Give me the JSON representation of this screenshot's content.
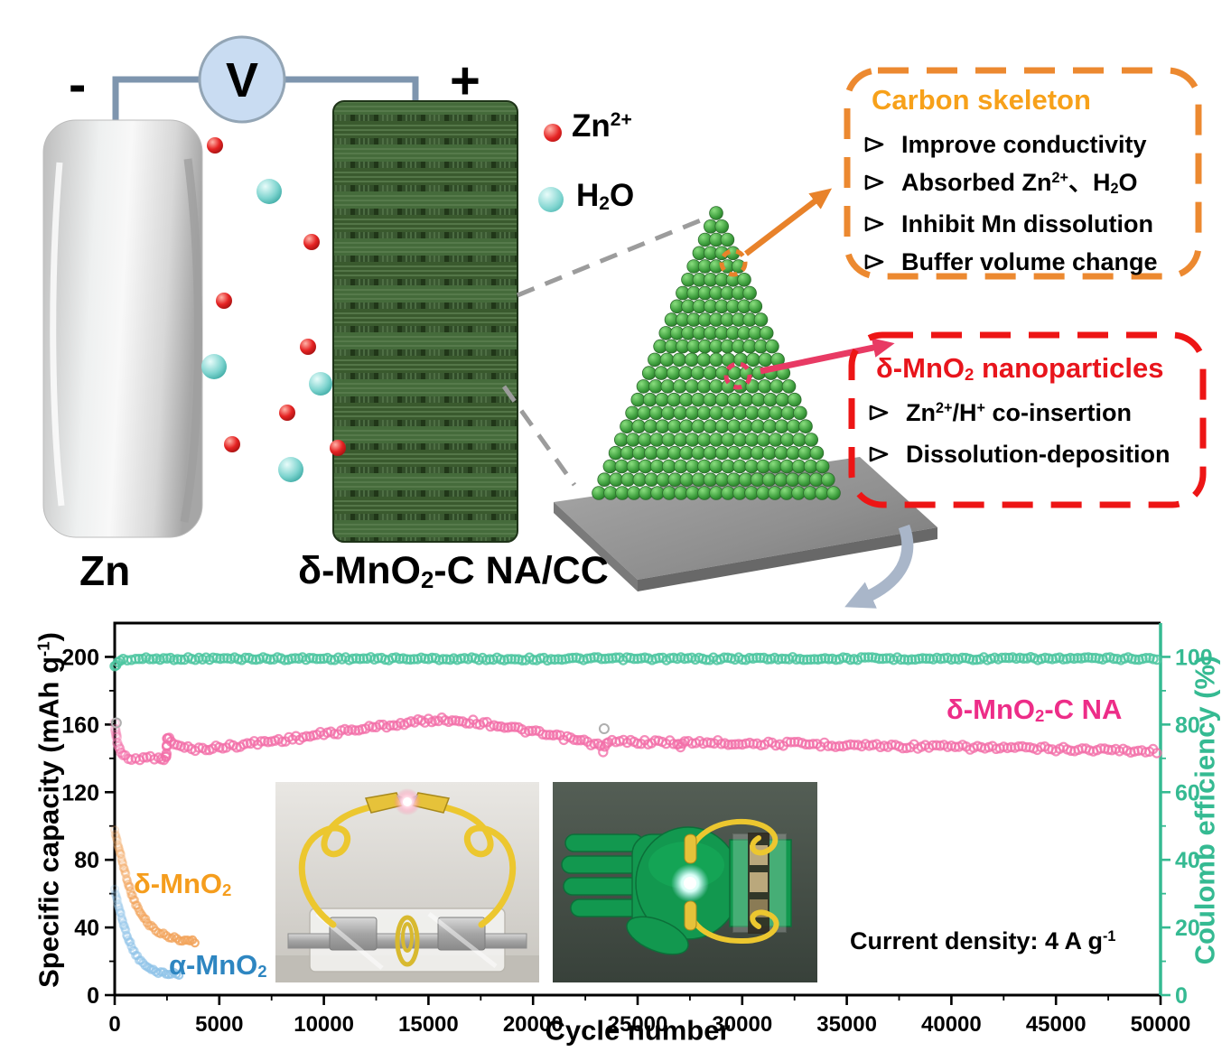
{
  "colors": {
    "pink_series": "#F36FA9",
    "pink_label": "#ED2D88",
    "green_series": "#4CC6A0",
    "green_axis": "#35BA92",
    "orange_series": "#F2A45C",
    "orange_label": "#F59D1D",
    "blue_series": "#8FC3E8",
    "blue_label": "#2E86C1",
    "carbon_border": "#EC8930",
    "carbon_title": "#F7A11A",
    "mno2_border": "#ED1515",
    "mno2_title": "#E8151C",
    "wire": "#7E95AE",
    "outlier": "#AFAFAF"
  },
  "diagram": {
    "minus": "-",
    "plus": "+",
    "voltmeter": "V",
    "anode_label": "Zn",
    "cathode_label": [
      [
        "t",
        "δ-MnO"
      ],
      [
        "sub",
        "2"
      ],
      [
        "t",
        "-C NA/CC"
      ]
    ],
    "legend": {
      "zn_ion": [
        [
          "t",
          "Zn"
        ],
        [
          "sup",
          "2+"
        ]
      ],
      "water": [
        [
          "t",
          "H"
        ],
        [
          "sub",
          "2"
        ],
        [
          "t",
          "O"
        ]
      ]
    },
    "carbon_box": {
      "title": "Carbon skeleton",
      "bullet": "➢",
      "items": [
        [
          [
            "t",
            "Improve conductivity"
          ]
        ],
        [
          [
            "t",
            "Absorbed Zn"
          ],
          [
            "sup",
            "2+"
          ],
          [
            "t",
            "、H"
          ],
          [
            "sub",
            "2"
          ],
          [
            "t",
            "O"
          ]
        ],
        [
          [
            "t",
            "Inhibit Mn dissolution"
          ]
        ],
        [
          [
            "t",
            "Buffer volume change"
          ]
        ]
      ]
    },
    "mno2_box": {
      "title": [
        [
          "t",
          "δ-MnO"
        ],
        [
          "sub",
          "2"
        ],
        [
          "t",
          " nanoparticles"
        ]
      ],
      "bullet": "➢",
      "items": [
        [
          [
            "t",
            "Zn"
          ],
          [
            "sup",
            "2+"
          ],
          [
            "t",
            "/H"
          ],
          [
            "sup",
            "+"
          ],
          [
            "t",
            " co-insertion"
          ]
        ],
        [
          [
            "t",
            "Dissolution-deposition"
          ]
        ]
      ]
    }
  },
  "chart_data": {
    "type": "scatter",
    "xlabel": "Cycle number",
    "ylabel_left": [
      [
        "t",
        "Specific capacity (mAh g"
      ],
      [
        "sup",
        "-1"
      ],
      [
        "t",
        ")"
      ]
    ],
    "ylabel_right": "Coulomb efficiency (%)",
    "annotation": [
      [
        "t",
        "Current density: 4 A g"
      ],
      [
        "sup",
        "-1"
      ]
    ],
    "xlim": [
      0,
      50000
    ],
    "ylim_left": [
      0,
      220
    ],
    "ylim_right": [
      0,
      110
    ],
    "x_ticks": [
      0,
      5000,
      10000,
      15000,
      20000,
      25000,
      30000,
      35000,
      40000,
      45000,
      50000
    ],
    "y_ticks_left": [
      0,
      40,
      80,
      120,
      160,
      200
    ],
    "y_ticks_right": [
      0,
      20,
      40,
      60,
      80,
      100
    ],
    "grid": false,
    "series": [
      {
        "id": "coulomb-efficiency",
        "label": [
          [
            "t",
            "Coulomb efficiency"
          ]
        ],
        "axis": "right",
        "color": "#4CC6A0",
        "points": [
          [
            0,
            97
          ],
          [
            150,
            98.5
          ],
          [
            400,
            99.2
          ],
          [
            1000,
            99.4
          ],
          [
            3000,
            99.5
          ],
          [
            10000,
            99.5
          ],
          [
            20000,
            99.4
          ],
          [
            30000,
            99.5
          ],
          [
            40000,
            99.5
          ],
          [
            50000,
            99.5
          ]
        ]
      },
      {
        "id": "delta-mno2-c-na",
        "label": [
          [
            "t",
            "δ-MnO"
          ],
          [
            "sub",
            "2"
          ],
          [
            "t",
            "-C NA"
          ]
        ],
        "axis": "left",
        "color": "#F36FA9",
        "points": [
          [
            0,
            160
          ],
          [
            120,
            150
          ],
          [
            300,
            143.5
          ],
          [
            500,
            140.5
          ],
          [
            800,
            139.5
          ],
          [
            1200,
            140
          ],
          [
            1700,
            140.5
          ],
          [
            2100,
            141
          ],
          [
            2350,
            140
          ],
          [
            2450,
            139.5
          ],
          [
            2520,
            153
          ],
          [
            2700,
            149.5
          ],
          [
            3000,
            147.5
          ],
          [
            3500,
            146
          ],
          [
            4200,
            145.5
          ],
          [
            5000,
            146.5
          ],
          [
            6000,
            148
          ],
          [
            7000,
            149.5
          ],
          [
            8000,
            151
          ],
          [
            9000,
            152.5
          ],
          [
            10000,
            154.5
          ],
          [
            11500,
            157
          ],
          [
            13000,
            159.5
          ],
          [
            14000,
            161
          ],
          [
            15000,
            162.5
          ],
          [
            15800,
            163
          ],
          [
            16800,
            162
          ],
          [
            17800,
            160.5
          ],
          [
            18800,
            158.5
          ],
          [
            19800,
            156
          ],
          [
            20800,
            153.5
          ],
          [
            21800,
            151.5
          ],
          [
            22600,
            149.5
          ],
          [
            23100,
            148
          ],
          [
            23350,
            145
          ],
          [
            23600,
            149.5
          ],
          [
            24500,
            150
          ],
          [
            26000,
            149.5
          ],
          [
            26900,
            149.5
          ],
          [
            27050,
            146.5
          ],
          [
            27250,
            149.5
          ],
          [
            28500,
            149.5
          ],
          [
            30000,
            149
          ],
          [
            32500,
            148.5
          ],
          [
            35000,
            148
          ],
          [
            37500,
            147.3
          ],
          [
            40000,
            146.7
          ],
          [
            42500,
            146.2
          ],
          [
            45000,
            145.6
          ],
          [
            47500,
            145
          ],
          [
            50000,
            144.3
          ]
        ]
      },
      {
        "id": "delta-mno2",
        "label": [
          [
            "t",
            "δ-MnO"
          ],
          [
            "sub",
            "2"
          ]
        ],
        "axis": "left",
        "color": "#F2A45C",
        "fade_in": true,
        "points": [
          [
            0,
            97
          ],
          [
            120,
            91
          ],
          [
            260,
            84
          ],
          [
            420,
            76
          ],
          [
            600,
            68
          ],
          [
            800,
            60
          ],
          [
            1000,
            54
          ],
          [
            1250,
            48
          ],
          [
            1550,
            43
          ],
          [
            1850,
            39.5
          ],
          [
            2200,
            36.5
          ],
          [
            2600,
            34.5
          ],
          [
            3100,
            33
          ],
          [
            3600,
            32
          ],
          [
            3950,
            31.5
          ]
        ]
      },
      {
        "id": "alpha-mno2",
        "label": [
          [
            "t",
            "α-MnO"
          ],
          [
            "sub",
            "2"
          ]
        ],
        "axis": "left",
        "color": "#8FC3E8",
        "fade_in": true,
        "points": [
          [
            0,
            62
          ],
          [
            120,
            56
          ],
          [
            260,
            49
          ],
          [
            420,
            42
          ],
          [
            600,
            35
          ],
          [
            800,
            29
          ],
          [
            1000,
            24
          ],
          [
            1250,
            20
          ],
          [
            1550,
            16.5
          ],
          [
            1850,
            14.5
          ],
          [
            2200,
            13.3
          ],
          [
            2700,
            12.7
          ],
          [
            3200,
            12.3
          ]
        ]
      }
    ],
    "outlier_points": [
      [
        80,
        161
      ],
      [
        23400,
        157.5
      ]
    ]
  }
}
